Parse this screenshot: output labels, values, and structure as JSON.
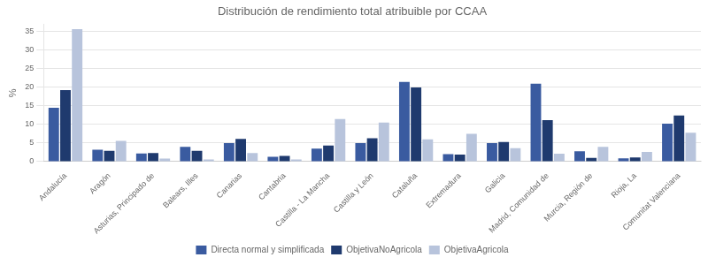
{
  "chart_data": {
    "type": "bar",
    "title": "Distribución de rendimiento total atribuible por CCAA",
    "y_label": "%",
    "categories": [
      "Andalucía",
      "Aragón",
      "Asturias, Principado de",
      "Balears, Illes",
      "Canarias",
      "Cantabria",
      "Castilla - La Mancha",
      "Castilla y León",
      "Cataluña",
      "Extremadura",
      "Galicia",
      "Madrid, Comunidad de",
      "Murcia, Región de",
      "Rioja, La",
      "Comunitat Valenciana"
    ],
    "series": [
      {
        "name": "Directa normal y simplificada",
        "color": "#3A5BA0",
        "values": [
          14.5,
          3.2,
          2.2,
          4.0,
          5.0,
          1.3,
          3.5,
          5.0,
          21.5,
          2.0,
          5.0,
          21.0,
          2.8,
          0.9,
          10.2
        ]
      },
      {
        "name": "ObjetivaNoAgricola",
        "color": "#1F3A6E",
        "values": [
          19.3,
          2.9,
          2.3,
          2.9,
          6.1,
          1.5,
          4.3,
          6.3,
          20.0,
          1.9,
          5.3,
          11.2,
          1.0,
          1.1,
          12.4
        ]
      },
      {
        "name": "ObjetivaAgricola",
        "color": "#B8C4DC",
        "values": [
          35.7,
          5.6,
          0.8,
          0.6,
          2.3,
          0.6,
          11.5,
          10.5,
          6.0,
          7.5,
          3.6,
          2.1,
          4.0,
          2.6,
          7.8
        ]
      }
    ],
    "ylim": [
      0,
      37
    ],
    "yticks": [
      0,
      5,
      10,
      15,
      20,
      25,
      30,
      35
    ],
    "grid": true,
    "legend": "bottom"
  }
}
